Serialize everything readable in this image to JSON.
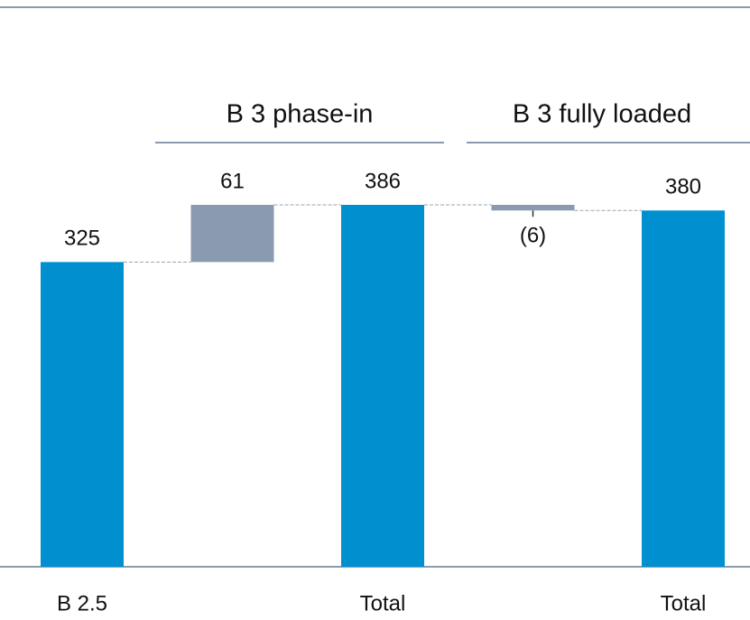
{
  "chart_data": {
    "type": "waterfall",
    "categories": [
      "B 2.5",
      null,
      "Total",
      null,
      "Total"
    ],
    "values": [
      325,
      61,
      386,
      -6,
      380
    ],
    "value_labels": [
      "325",
      "61",
      "386",
      "(6)",
      "380"
    ],
    "is_total": [
      true,
      false,
      true,
      false,
      true
    ],
    "total_color": "#0090d0",
    "delta_color": "#8a9bb0",
    "group_labels": [
      "B 3 phase-in",
      "B 3 fully loaded"
    ]
  }
}
